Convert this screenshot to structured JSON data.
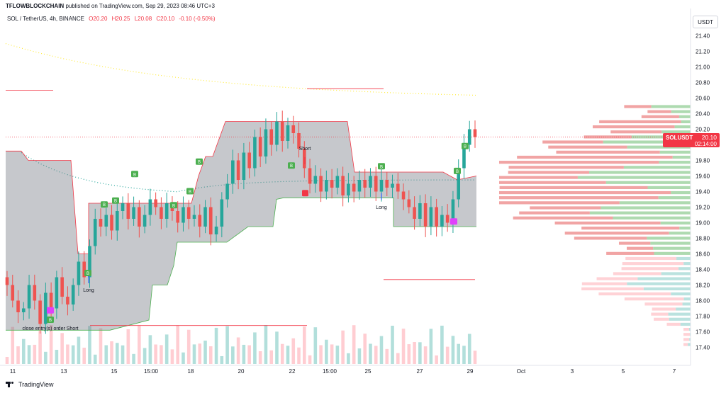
{
  "header": {
    "channel": "TFLOWBLOCKCHAIN",
    "published": "published on TradingView.com, Sep 29, 2023 08:46 UTC+3"
  },
  "symbol": {
    "name": "SOL / TetherUS, 4h, BINANCE",
    "open": "O20.20",
    "high": "H20.25",
    "low": "L20.08",
    "close": "C20.10",
    "change": "-0.10 (-0.50%)"
  },
  "currency_box": "USDT",
  "last_price": {
    "symbol": "SOLUSDT",
    "price": "20.10",
    "countdown": "02:14:00"
  },
  "footer": {
    "brand": "TradingView"
  },
  "colors": {
    "up": "#26a69a",
    "down": "#ef5350",
    "signal": "#4caf50",
    "box_fill": "#b2b5be",
    "accent": "#e040fb"
  },
  "chart_data": {
    "type": "candlestick",
    "x_ticks": [
      "11",
      "13",
      "15",
      "15:00",
      "18",
      "20",
      "22",
      "15:00",
      "25",
      "27",
      "29",
      "Oct",
      "3",
      "5",
      "7"
    ],
    "y_ticks": [
      "21.40",
      "21.20",
      "21.00",
      "20.80",
      "20.60",
      "20.40",
      "20.20",
      "20.00",
      "19.80",
      "19.60",
      "19.40",
      "19.20",
      "19.00",
      "18.80",
      "18.60",
      "18.40",
      "18.20",
      "18.00",
      "17.80",
      "17.60",
      "17.40"
    ],
    "ylim": [
      17.3,
      21.6
    ],
    "annotations": [
      "Short",
      "Long",
      "Long",
      "close entry(s) order Short"
    ],
    "signal_marker": "B"
  }
}
